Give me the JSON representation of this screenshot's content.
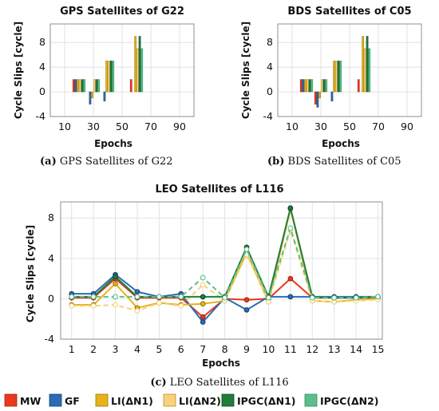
{
  "colors": {
    "MW": "#e8381f",
    "GF": "#2a6db5",
    "LI_N1": "#e8b21b",
    "LI_N2": "#f7d27a",
    "IPGC_N1": "#1f7d3e",
    "IPGC_N2": "#5cbf8a"
  },
  "legend": [
    "MW",
    "GF",
    "LI(ΔN1)",
    "LI(ΔN2)",
    "IPGC(ΔN1)",
    "IPGC(ΔN2)"
  ],
  "chart_data": [
    {
      "type": "bar",
      "title": "GPS Satellites of G22",
      "xlabel": "Epochs",
      "ylabel": "Cycle Slips [cycle]",
      "caption_letter": "(a)",
      "caption_text": "GPS Satellites of G22",
      "xlim": [
        0,
        100
      ],
      "ylim": [
        -4,
        11
      ],
      "xticks": [
        10,
        30,
        50,
        70,
        90
      ],
      "yticks": [
        -4,
        0,
        4,
        8
      ],
      "x": [
        20,
        30,
        40,
        60
      ],
      "series": [
        {
          "name": "MW",
          "values": [
            2,
            0,
            0,
            2
          ]
        },
        {
          "name": "GF",
          "values": [
            2,
            -2,
            -1.5,
            0
          ]
        },
        {
          "name": "LI(ΔN1)",
          "values": [
            2,
            -1,
            5,
            9
          ]
        },
        {
          "name": "LI(ΔN2)",
          "values": [
            2,
            2,
            5,
            7
          ]
        },
        {
          "name": "IPGC(ΔN1)",
          "values": [
            2,
            2,
            5,
            9
          ]
        },
        {
          "name": "IPGC(ΔN2)",
          "values": [
            2,
            2,
            5,
            7
          ]
        }
      ]
    },
    {
      "type": "bar",
      "title": "BDS Satellites of C05",
      "xlabel": "Epochs",
      "ylabel": "Cycle Slips [cycle]",
      "caption_letter": "(b)",
      "caption_text": "BDS Satellites of C05",
      "xlim": [
        0,
        100
      ],
      "ylim": [
        -4,
        11
      ],
      "xticks": [
        10,
        30,
        50,
        70,
        90
      ],
      "yticks": [
        -4,
        0,
        4,
        8
      ],
      "x": [
        20,
        30,
        40,
        60
      ],
      "series": [
        {
          "name": "MW",
          "values": [
            2,
            -2,
            0,
            2
          ]
        },
        {
          "name": "GF",
          "values": [
            2,
            -2.5,
            -1.5,
            0
          ]
        },
        {
          "name": "LI(ΔN1)",
          "values": [
            2,
            -1,
            5,
            9
          ]
        },
        {
          "name": "LI(ΔN2)",
          "values": [
            2,
            2,
            5,
            7
          ]
        },
        {
          "name": "IPGC(ΔN1)",
          "values": [
            2,
            2,
            5,
            9
          ]
        },
        {
          "name": "IPGC(ΔN2)",
          "values": [
            2,
            2,
            5,
            7
          ]
        }
      ]
    },
    {
      "type": "line",
      "title": "LEO Satellites of L116",
      "xlabel": "Epochs",
      "ylabel": "Cycle Slips [cycle]",
      "caption_letter": "(c)",
      "caption_text": "LEO Satellites of L116",
      "xlim": [
        0.5,
        15.2
      ],
      "ylim": [
        -4,
        9.6
      ],
      "xticks": [
        1,
        2,
        3,
        4,
        5,
        6,
        7,
        8,
        9,
        10,
        11,
        12,
        13,
        14,
        15
      ],
      "yticks": [
        -4,
        0,
        4,
        8
      ],
      "x": [
        1,
        2,
        3,
        4,
        5,
        6,
        7,
        8,
        9,
        10,
        11,
        12,
        13,
        14,
        15
      ],
      "series": [
        {
          "name": "MW",
          "values": [
            0.1,
            0.1,
            2.0,
            0.1,
            0.1,
            0.1,
            -1.8,
            0.0,
            -0.1,
            0.0,
            2.0,
            0.1,
            0.1,
            0.1,
            0.1
          ]
        },
        {
          "name": "GF",
          "values": [
            0.5,
            0.5,
            2.4,
            0.7,
            0.2,
            0.5,
            -2.3,
            0.1,
            -1.1,
            0.2,
            0.2,
            0.2,
            0.2,
            0.2,
            0.2
          ]
        },
        {
          "name": "LI(ΔN1)",
          "values": [
            -0.6,
            -0.6,
            1.5,
            -0.9,
            -0.4,
            -0.6,
            -0.5,
            -0.2,
            4.6,
            -0.3,
            8.9,
            -0.2,
            -0.3,
            -0.1,
            0.0
          ]
        },
        {
          "name": "LI(ΔN2)",
          "values": [
            -0.7,
            -0.7,
            -0.6,
            -1.2,
            -0.4,
            -0.7,
            1.4,
            -0.2,
            4.4,
            -0.3,
            6.8,
            -0.2,
            -0.3,
            -0.2,
            -0.1
          ]
        },
        {
          "name": "IPGC(ΔN1)",
          "values": [
            0.2,
            0.2,
            2.2,
            0.2,
            0.2,
            0.2,
            0.2,
            0.2,
            5.1,
            0.2,
            9.0,
            0.2,
            0.1,
            0.1,
            0.2
          ]
        },
        {
          "name": "IPGC(ΔN2)",
          "values": [
            0.2,
            0.2,
            0.2,
            0.2,
            0.2,
            0.2,
            2.1,
            0.1,
            4.9,
            0.1,
            7.0,
            0.1,
            0.1,
            0.1,
            0.2
          ]
        }
      ]
    }
  ]
}
